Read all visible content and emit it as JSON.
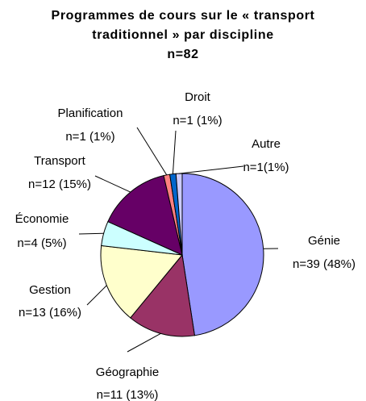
{
  "chart_data": {
    "type": "pie",
    "title": "Programmes de cours sur le « transport traditionnel » par discipline",
    "subtitle": "n=82",
    "categories": [
      "Génie",
      "Géographie",
      "Gestion",
      "Économie",
      "Transport",
      "Planification",
      "Droit",
      "Autre"
    ],
    "values": [
      39,
      11,
      13,
      4,
      12,
      1,
      1,
      1
    ],
    "value_labels": [
      "n=39 (48%)",
      "n=11 (13%)",
      "n=13 (16%)",
      "n=4 (5%)",
      "n=12 (15%)",
      "n=1 (1%)",
      "n=1 (1%)",
      "n=1(1%)"
    ],
    "colors": [
      "#9999ff",
      "#993366",
      "#ffffcc",
      "#ccffff",
      "#660066",
      "#ff8080",
      "#0066cc",
      "#ccccff"
    ]
  }
}
